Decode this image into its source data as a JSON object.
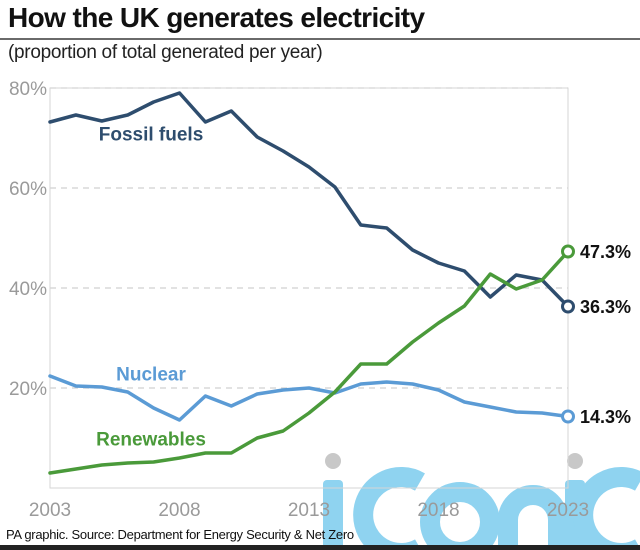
{
  "header": {
    "title": "How the UK generates electricity",
    "subtitle": "(proportion of total generated per year)"
  },
  "footer": {
    "source": "PA graphic. Source: Department for Energy Security & Net Zero"
  },
  "watermark": {
    "text": "iconic",
    "color": "#8fd3f0",
    "dot_color": "#c8c8c8"
  },
  "chart_data": {
    "type": "line",
    "title": "How the UK generates electricity",
    "subtitle": "(proportion of total generated per year)",
    "xlabel": "",
    "ylabel": "",
    "x": [
      2003,
      2004,
      2005,
      2006,
      2007,
      2008,
      2009,
      2010,
      2011,
      2012,
      2013,
      2014,
      2015,
      2016,
      2017,
      2018,
      2019,
      2020,
      2021,
      2022,
      2023
    ],
    "xlim": [
      2003,
      2023
    ],
    "ylim": [
      0,
      80
    ],
    "x_ticks": [
      2003,
      2008,
      2013,
      2018,
      2023
    ],
    "x_tick_labels": [
      "2003",
      "2008",
      "2013",
      "2018",
      "2023"
    ],
    "y_ticks": [
      20,
      40,
      60,
      80
    ],
    "y_tick_labels": [
      "20%",
      "40%",
      "60%",
      "80%"
    ],
    "grid": "horizontal-dashed",
    "legend": "inline-labels",
    "series": [
      {
        "name": "Fossil fuels",
        "color": "#2e4d6e",
        "values": [
          73.2,
          74.6,
          73.4,
          74.6,
          77.2,
          79.0,
          73.2,
          75.4,
          70.2,
          67.4,
          64.2,
          60.2,
          52.6,
          52.0,
          47.6,
          45.0,
          43.4,
          38.2,
          42.6,
          41.6,
          36.3
        ],
        "end_label": "36.3%"
      },
      {
        "name": "Renewables",
        "color": "#4a9a3a",
        "values": [
          3.0,
          3.8,
          4.6,
          5.0,
          5.2,
          6.0,
          7.0,
          7.0,
          10.0,
          11.4,
          15.0,
          19.2,
          24.8,
          24.8,
          29.2,
          33.0,
          36.4,
          42.8,
          39.8,
          41.6,
          47.3
        ],
        "end_label": "47.3%"
      },
      {
        "name": "Nuclear",
        "color": "#5b9bd5",
        "values": [
          22.4,
          20.4,
          20.2,
          19.2,
          16.0,
          13.6,
          18.4,
          16.4,
          18.8,
          19.6,
          20.0,
          19.0,
          20.8,
          21.2,
          20.8,
          19.6,
          17.2,
          16.2,
          15.2,
          15.0,
          14.3
        ],
        "end_label": "14.3%"
      }
    ],
    "annotations": [
      {
        "text": "Fossil fuels",
        "series": "Fossil fuels"
      },
      {
        "text": "Nuclear",
        "series": "Nuclear"
      },
      {
        "text": "Renewables",
        "series": "Renewables"
      }
    ]
  }
}
